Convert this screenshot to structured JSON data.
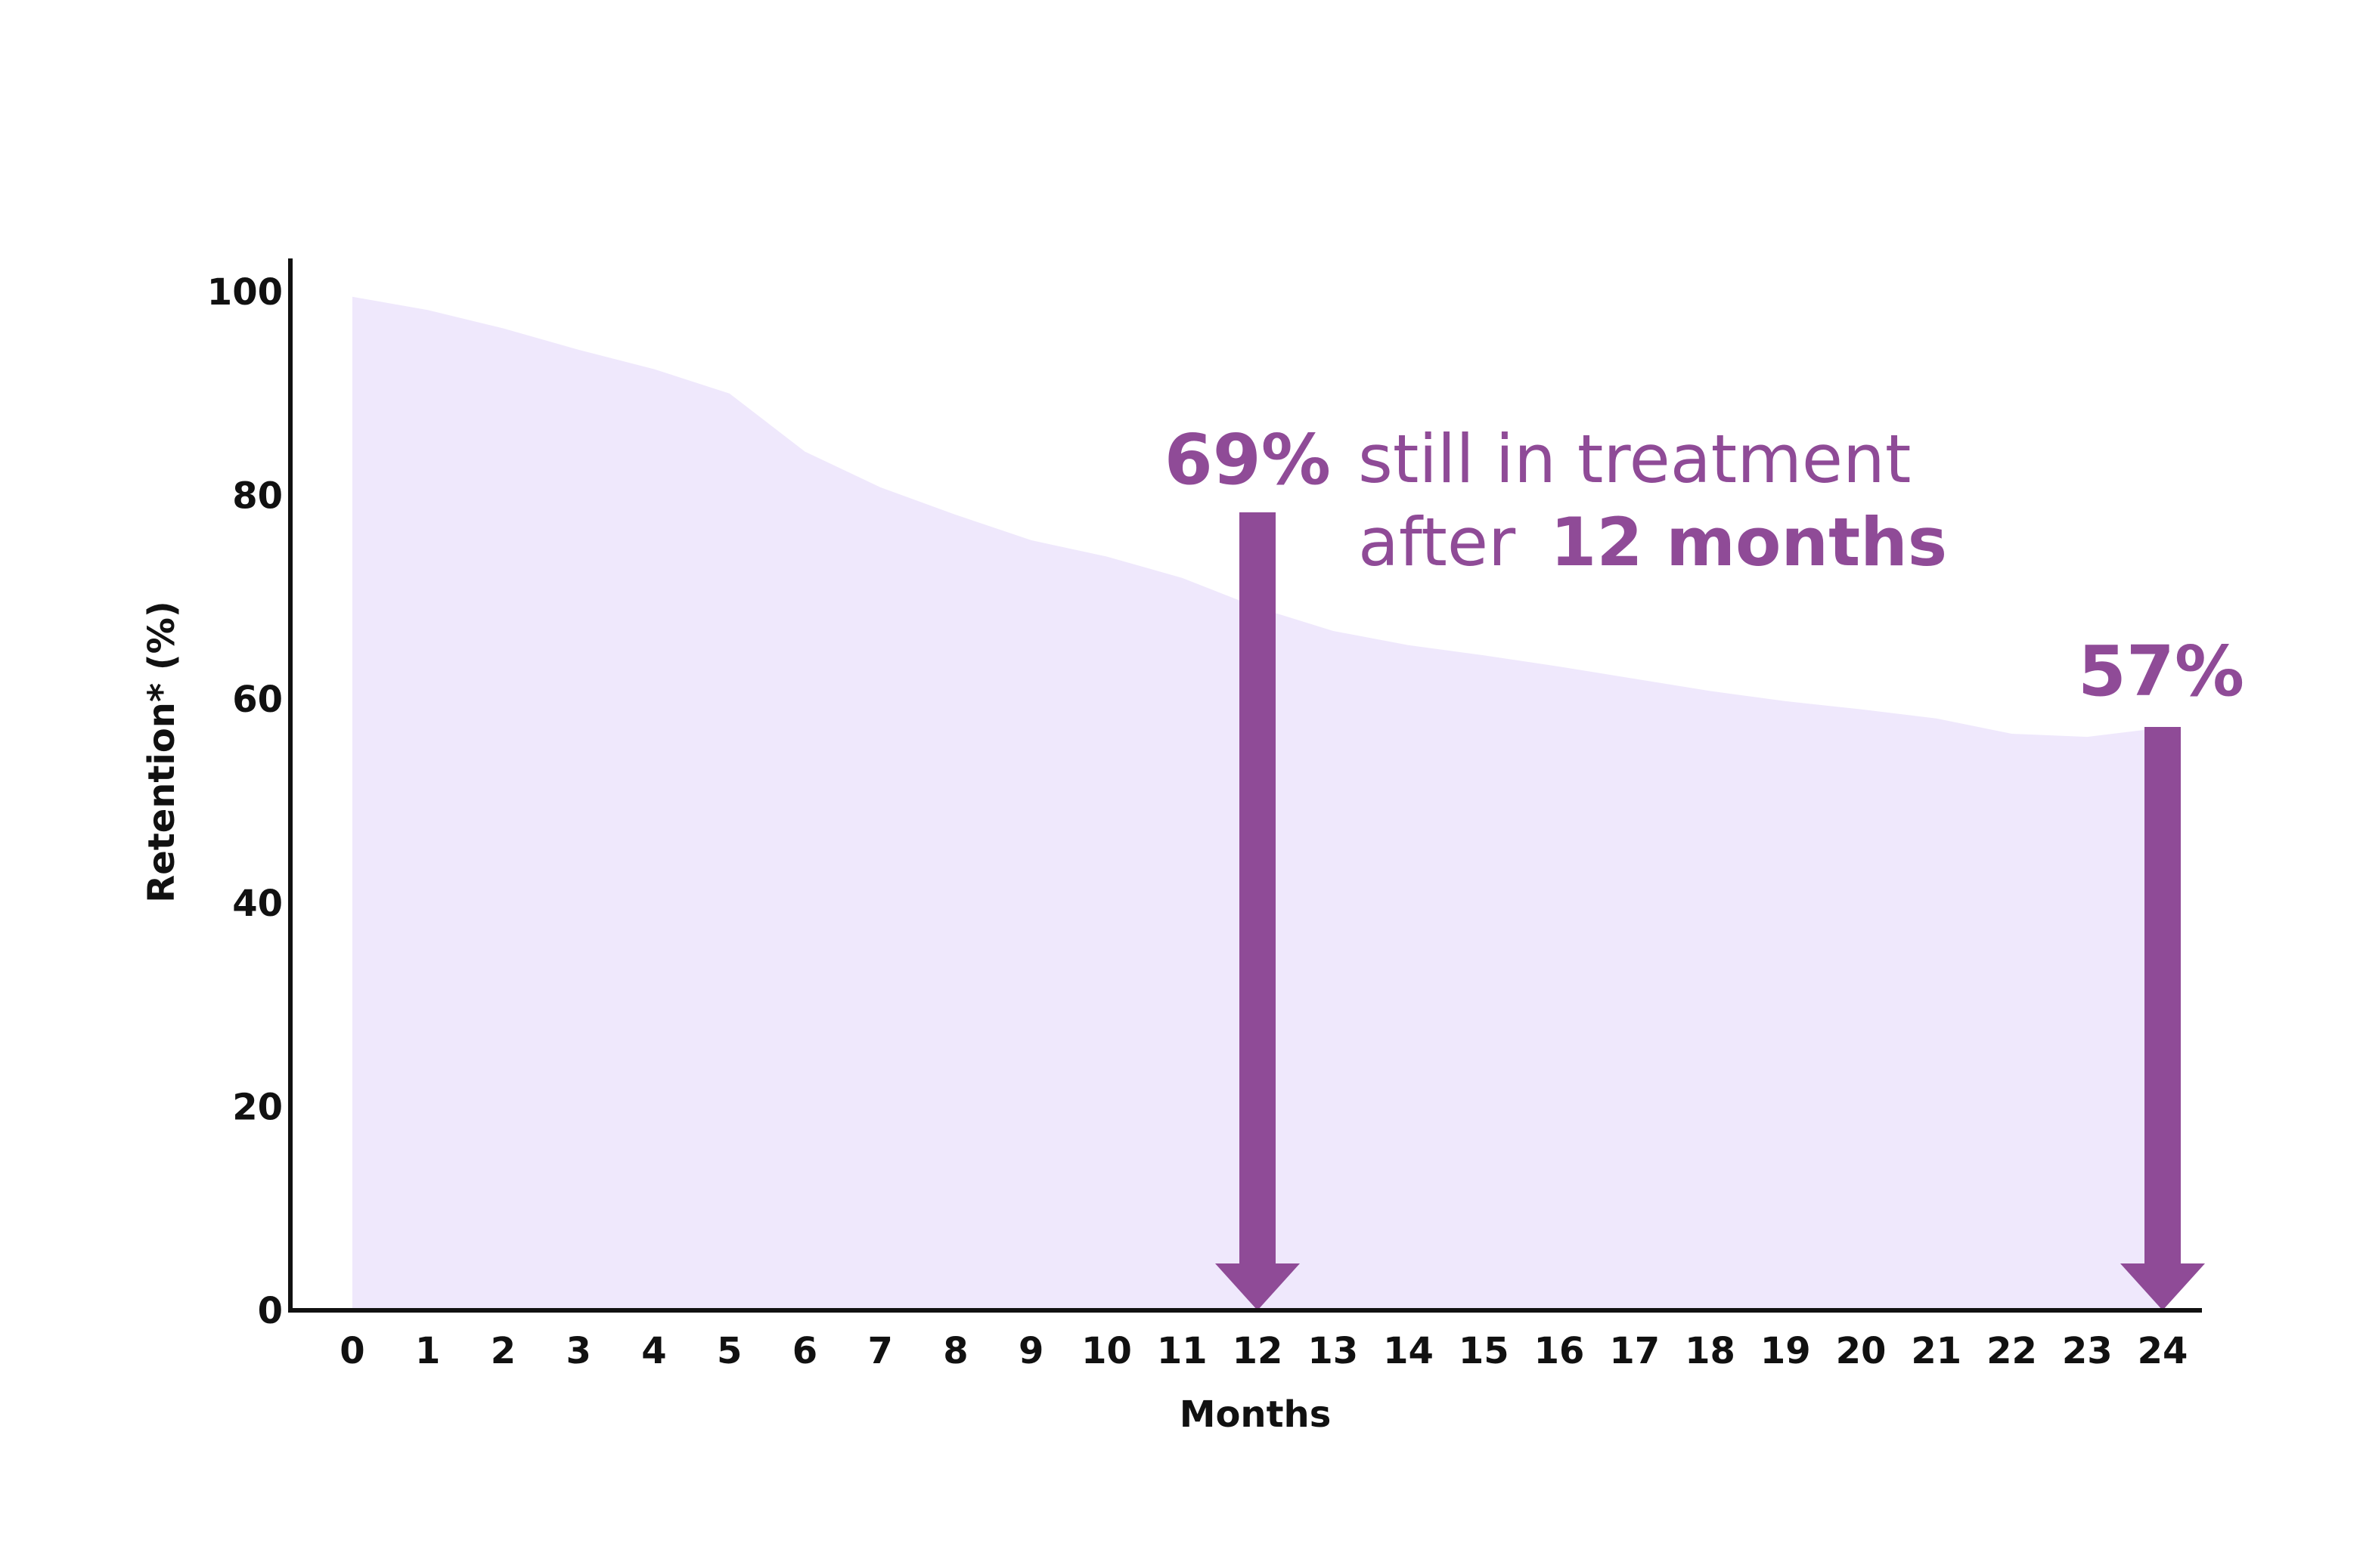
{
  "chart_data": {
    "type": "area",
    "x": [
      0,
      1,
      2,
      3,
      4,
      5,
      6,
      7,
      8,
      9,
      10,
      11,
      12,
      13,
      14,
      15,
      16,
      17,
      18,
      19,
      20,
      21,
      22,
      23,
      24
    ],
    "x_tick_labels": [
      "0",
      "1",
      "2",
      "3",
      "4",
      "5",
      "6",
      "7",
      "8",
      "9",
      "10",
      "11",
      "12",
      "13",
      "14",
      "15",
      "16",
      "17",
      "18",
      "19",
      "20",
      "21",
      "22",
      "23",
      "24"
    ],
    "y_tick_labels": [
      "0",
      "20",
      "40",
      "60",
      "80",
      "100"
    ],
    "y_ticks": [
      0,
      20,
      40,
      60,
      80,
      100
    ],
    "values": [
      99.5,
      98.2,
      96.4,
      94.3,
      92.4,
      90.0,
      84.3,
      80.8,
      78.1,
      75.6,
      74.0,
      71.9,
      69.0,
      66.7,
      65.3,
      64.3,
      63.2,
      62.0,
      60.8,
      59.8,
      59.0,
      58.1,
      56.6,
      56.3,
      57.2
    ],
    "xlabel": "Months",
    "ylabel": "Retention* (%)",
    "xlim": [
      0,
      24
    ],
    "ylim": [
      0,
      100
    ],
    "grid": false,
    "fill_color": "#efe8fc",
    "accent_color": "#8f4b97",
    "axis_color": "#111111",
    "annotations": [
      {
        "x": 12,
        "value": 69,
        "label": "69%",
        "text_line1": "still in treatment",
        "text_line2_regular": "after",
        "text_line2_bold": "12 months"
      },
      {
        "x": 24,
        "value": 57,
        "label": "57%"
      }
    ]
  }
}
